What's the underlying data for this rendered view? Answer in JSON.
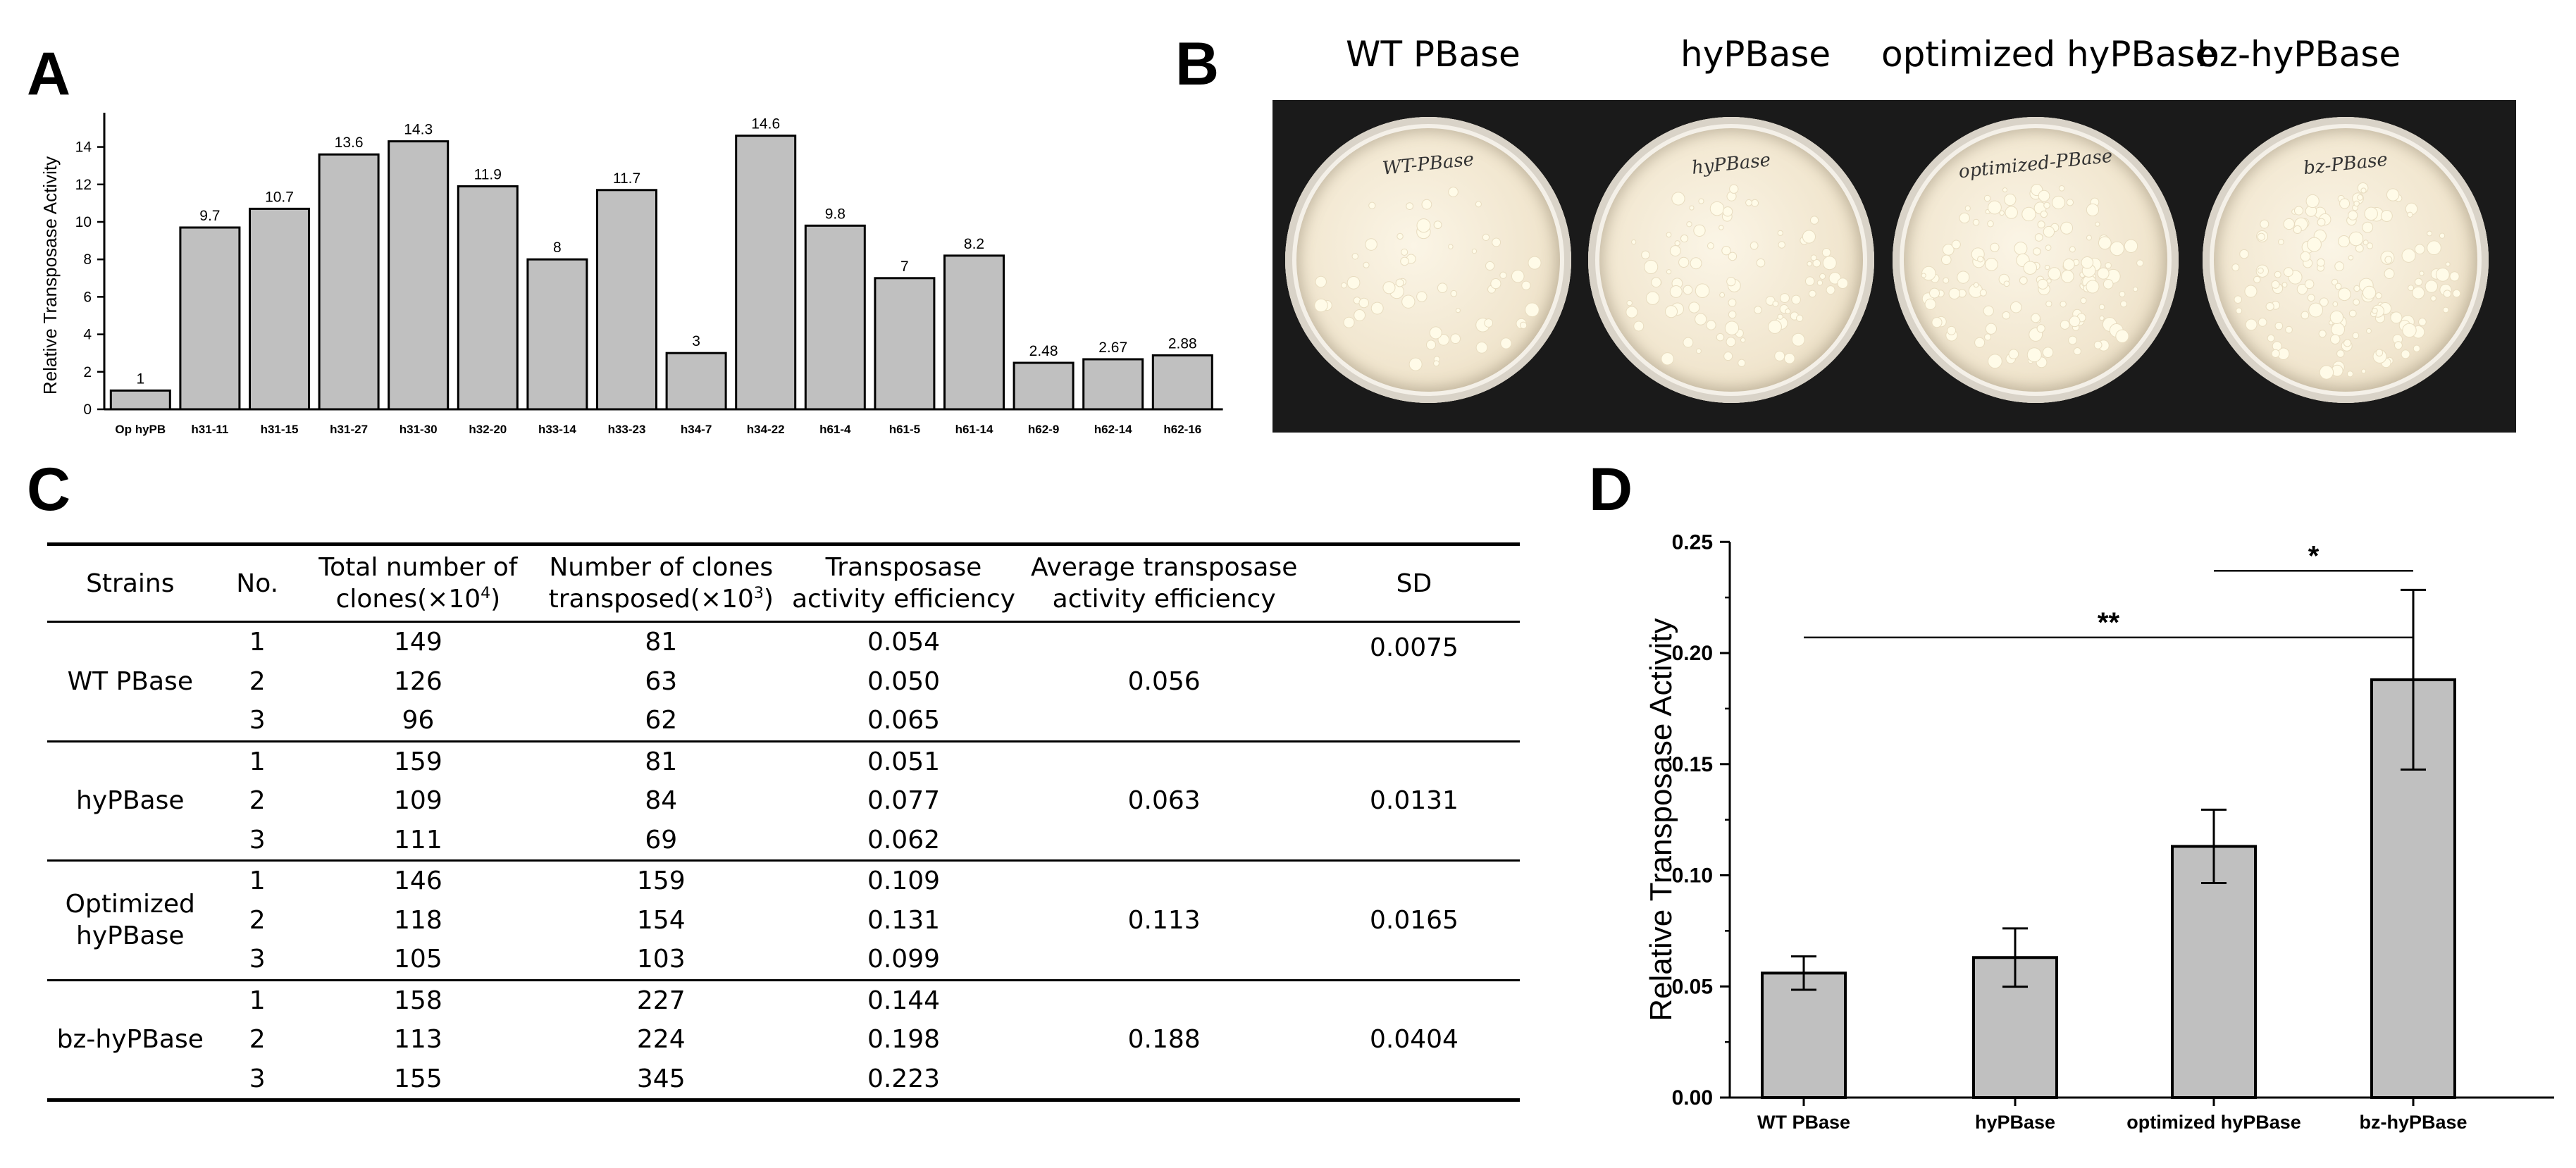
{
  "panels": {
    "a": "A",
    "b": "B",
    "c": "C",
    "d": "D"
  },
  "chart_data": [
    {
      "type": "bar",
      "panel": "A",
      "title": "",
      "xlabel": "",
      "ylabel": "Relative Transposase Activity",
      "ylim": [
        0,
        16
      ],
      "yticks": [
        "0",
        "2",
        "4",
        "6",
        "8",
        "10",
        "12",
        "14"
      ],
      "categories": [
        "Op hyPB",
        "h31-11",
        "h31-15",
        "h31-27",
        "h31-30",
        "h32-20",
        "h33-14",
        "h33-23",
        "h34-7",
        "h34-22",
        "h61-4",
        "h61-5",
        "h61-14",
        "h62-9",
        "h62-14",
        "h62-16"
      ],
      "values": [
        1,
        9.7,
        10.7,
        13.6,
        14.3,
        11.9,
        8,
        11.7,
        3,
        14.6,
        9.8,
        7,
        8.2,
        2.48,
        2.67,
        2.88
      ],
      "data_labels": [
        "1",
        "9.7",
        "10.7",
        "13.6",
        "14.3",
        "11.9",
        "8",
        "11.7",
        "3",
        "14.6",
        "9.8",
        "7",
        "8.2",
        "2.48",
        "2.67",
        "2.88"
      ],
      "bar_color": "#c0c0c0",
      "grid": false
    },
    {
      "type": "bar",
      "panel": "D",
      "title": "",
      "xlabel": "",
      "ylabel": "Relative Transposase Activity",
      "ylim": [
        0,
        0.25
      ],
      "yticks": [
        "0.00",
        "0.05",
        "0.10",
        "0.15",
        "0.20",
        "0.25"
      ],
      "categories": [
        "WT PBase",
        "hyPBase",
        "optimized hyPBase",
        "bz-hyPBase"
      ],
      "values": [
        0.056,
        0.063,
        0.113,
        0.188
      ],
      "errors": [
        0.0075,
        0.0131,
        0.0165,
        0.0404
      ],
      "bar_color": "#c0c0c0",
      "grid": false,
      "significance": [
        {
          "from": "optimized hyPBase",
          "to": "bz-hyPBase",
          "label": "*",
          "y": 0.237
        },
        {
          "from": "WT PBase",
          "to": "bz-hyPBase",
          "label": "**",
          "y": 0.207
        }
      ]
    }
  ],
  "plates": {
    "headers": [
      "WT PBase",
      "hyPBase",
      "optimized hyPBase",
      "bz-hyPBase"
    ],
    "writings": [
      "WT-PBase",
      "hyPBase",
      "optimized-PBase",
      "bz-PBase"
    ]
  },
  "table": {
    "headers": {
      "strains": "Strains",
      "no": "No.",
      "total_1": "Total  number of",
      "total_2": "clones(×10",
      "total_sup": "4",
      "total_end": ")",
      "transposed_1": "Number of clones",
      "transposed_2": "transposed(×10",
      "transposed_sup": "3",
      "transposed_end": ")",
      "eff_1": "Transposase",
      "eff_2": "activity efficiency",
      "avg_1": "Average transposase",
      "avg_2": "activity efficiency",
      "sd": "SD"
    },
    "groups": [
      {
        "strain": [
          "WT PBase"
        ],
        "average": "0.056",
        "sd": "0.0075",
        "sd_pos": "top",
        "rows": [
          [
            "1",
            "149",
            "81",
            "0.054"
          ],
          [
            "2",
            "126",
            "63",
            "0.050"
          ],
          [
            "3",
            "96",
            "62",
            "0.065"
          ]
        ]
      },
      {
        "strain": [
          "hyPBase"
        ],
        "average": "0.063",
        "sd": "0.0131",
        "sd_pos": "mid",
        "rows": [
          [
            "1",
            "159",
            "81",
            "0.051"
          ],
          [
            "2",
            "109",
            "84",
            "0.077"
          ],
          [
            "3",
            "111",
            "69",
            "0.062"
          ]
        ]
      },
      {
        "strain": [
          "Optimized",
          "hyPBase"
        ],
        "average": "0.113",
        "sd": "0.0165",
        "sd_pos": "mid",
        "rows": [
          [
            "1",
            "146",
            "159",
            "0.109"
          ],
          [
            "2",
            "118",
            "154",
            "0.131"
          ],
          [
            "3",
            "105",
            "103",
            "0.099"
          ]
        ]
      },
      {
        "strain": [
          "bz-hyPBase"
        ],
        "average": "0.188",
        "sd": "0.0404",
        "sd_pos": "mid",
        "rows": [
          [
            "1",
            "158",
            "227",
            "0.144"
          ],
          [
            "2",
            "113",
            "224",
            "0.198"
          ],
          [
            "3",
            "155",
            "345",
            "0.223"
          ]
        ]
      }
    ]
  }
}
